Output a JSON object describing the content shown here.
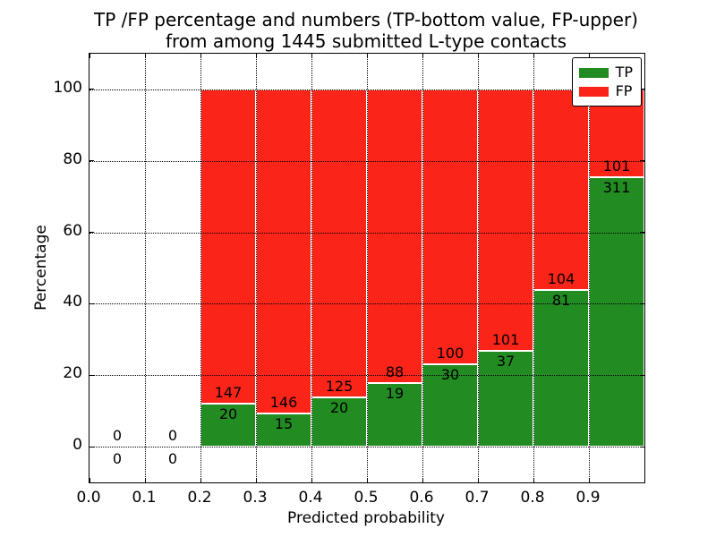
{
  "chart_data": {
    "type": "bar",
    "stacked": true,
    "normalized_to_percent": 100,
    "title_line1": "TP /FP percentage and numbers (TP-bottom value, FP-upper)",
    "title_line2": "from among 1445 submitted L-type contacts",
    "total_submitted": 1445,
    "xlabel": "Predicted probability",
    "ylabel": "Percentage",
    "xlim": [
      0.0,
      1.0
    ],
    "ylim": [
      -10,
      110
    ],
    "grid": "dotted",
    "legend_position": "upper right",
    "xticks": [
      {
        "value": 0.0,
        "label": "0.0"
      },
      {
        "value": 0.1,
        "label": "0.1"
      },
      {
        "value": 0.2,
        "label": "0.2"
      },
      {
        "value": 0.3,
        "label": "0.3"
      },
      {
        "value": 0.4,
        "label": "0.4"
      },
      {
        "value": 0.5,
        "label": "0.5"
      },
      {
        "value": 0.6,
        "label": "0.6"
      },
      {
        "value": 0.7,
        "label": "0.7"
      },
      {
        "value": 0.8,
        "label": "0.8"
      },
      {
        "value": 0.9,
        "label": "0.9"
      }
    ],
    "yticks": [
      {
        "value": 0,
        "label": "0"
      },
      {
        "value": 20,
        "label": "20"
      },
      {
        "value": 40,
        "label": "40"
      },
      {
        "value": 60,
        "label": "60"
      },
      {
        "value": 80,
        "label": "80"
      },
      {
        "value": 100,
        "label": "100"
      }
    ],
    "series": [
      {
        "name": "TP",
        "color": "#228b22"
      },
      {
        "name": "FP",
        "color": "#fa2418"
      }
    ],
    "bins": [
      {
        "x_start": 0.0,
        "x_end": 0.1,
        "tp": 0,
        "fp": 0
      },
      {
        "x_start": 0.1,
        "x_end": 0.2,
        "tp": 0,
        "fp": 0
      },
      {
        "x_start": 0.2,
        "x_end": 0.3,
        "tp": 20,
        "fp": 147
      },
      {
        "x_start": 0.3,
        "x_end": 0.4,
        "tp": 15,
        "fp": 146
      },
      {
        "x_start": 0.4,
        "x_end": 0.5,
        "tp": 20,
        "fp": 125
      },
      {
        "x_start": 0.5,
        "x_end": 0.6,
        "tp": 19,
        "fp": 88
      },
      {
        "x_start": 0.6,
        "x_end": 0.7,
        "tp": 30,
        "fp": 100
      },
      {
        "x_start": 0.7,
        "x_end": 0.8,
        "tp": 37,
        "fp": 101
      },
      {
        "x_start": 0.8,
        "x_end": 0.9,
        "tp": 81,
        "fp": 104
      },
      {
        "x_start": 0.9,
        "x_end": 1.0,
        "tp": 311,
        "fp": 101
      }
    ]
  }
}
